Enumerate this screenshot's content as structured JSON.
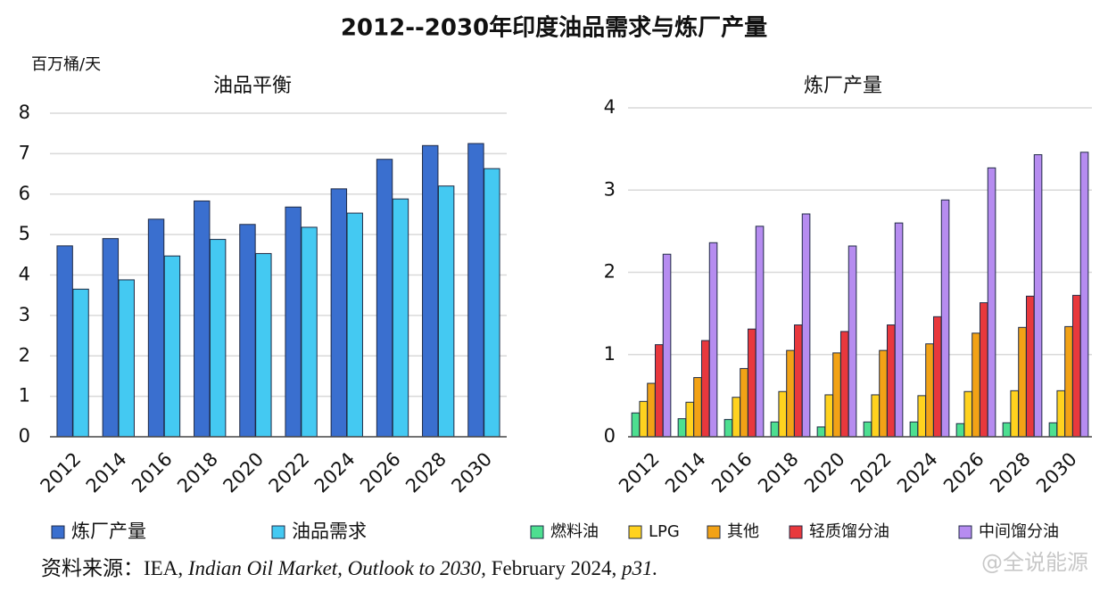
{
  "title": "2012--2030年印度油品需求与炼厂产量",
  "source": [
    {
      "text": "资料来源：IEA, ",
      "italic": false
    },
    {
      "text": "Indian Oil Market, Outlook to 2030,",
      "italic": true
    },
    {
      "text": " February 2024, ",
      "italic": false
    },
    {
      "text": "p31.",
      "italic": true
    }
  ],
  "watermark": "@全说能源",
  "chart_data": [
    {
      "type": "bar",
      "title": "油品平衡",
      "y_unit": "百万桶/天",
      "categories": [
        "2012",
        "2014",
        "2016",
        "2018",
        "2020",
        "2022",
        "2024",
        "2026",
        "2028",
        "2030"
      ],
      "series": [
        {
          "name": "炼厂产量",
          "color": "#3a6fcf",
          "values": [
            4.72,
            4.9,
            5.38,
            5.83,
            5.25,
            5.68,
            6.13,
            6.86,
            7.2,
            7.25
          ]
        },
        {
          "name": "油品需求",
          "color": "#44c9f2",
          "values": [
            3.65,
            3.88,
            4.47,
            4.88,
            4.53,
            5.18,
            5.53,
            5.88,
            6.2,
            6.63
          ]
        }
      ],
      "ylim": [
        0,
        8
      ],
      "yticks": [
        0,
        1,
        2,
        3,
        4,
        5,
        6,
        7,
        8
      ],
      "grid": true
    },
    {
      "type": "bar",
      "title": "炼厂产量",
      "categories": [
        "2012",
        "2014",
        "2016",
        "2018",
        "2020",
        "2022",
        "2024",
        "2026",
        "2028",
        "2030"
      ],
      "series": [
        {
          "name": "燃料油",
          "color": "#4ddf90",
          "values": [
            0.29,
            0.22,
            0.21,
            0.18,
            0.12,
            0.18,
            0.18,
            0.16,
            0.17,
            0.17
          ]
        },
        {
          "name": "LPG",
          "color": "#ffd21f",
          "values": [
            0.43,
            0.42,
            0.48,
            0.55,
            0.51,
            0.51,
            0.5,
            0.55,
            0.56,
            0.56
          ]
        },
        {
          "name": "其他",
          "color": "#f2a216",
          "values": [
            0.65,
            0.72,
            0.83,
            1.05,
            1.02,
            1.05,
            1.13,
            1.26,
            1.33,
            1.34
          ]
        },
        {
          "name": "轻质馏分油",
          "color": "#e8383d",
          "values": [
            1.12,
            1.17,
            1.31,
            1.36,
            1.28,
            1.36,
            1.46,
            1.63,
            1.71,
            1.72
          ]
        },
        {
          "name": "中间馏分油",
          "color": "#b68cf0",
          "values": [
            2.22,
            2.36,
            2.56,
            2.71,
            2.32,
            2.6,
            2.88,
            3.27,
            3.43,
            3.46
          ]
        }
      ],
      "ylim": [
        0,
        4
      ],
      "yticks": [
        0,
        1,
        2,
        3,
        4
      ],
      "grid": true
    }
  ]
}
